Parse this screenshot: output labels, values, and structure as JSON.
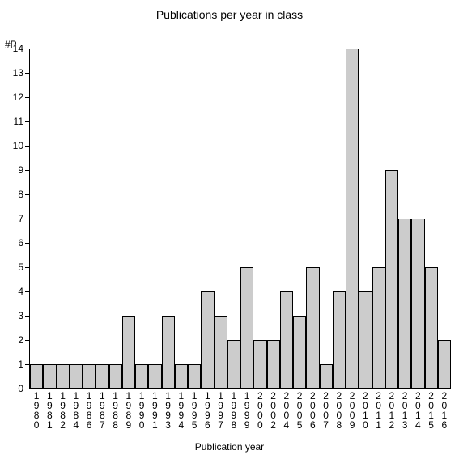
{
  "chart": {
    "type": "bar",
    "title": "Publications per year in class",
    "title_fontsize": 14,
    "y_axis_label": "#P",
    "x_axis_title": "Publication year",
    "label_fontsize": 12,
    "background_color": "#ffffff",
    "bar_fill": "#cccccc",
    "bar_border": "#000000",
    "axis_color": "#000000",
    "ylim": [
      0,
      14
    ],
    "ytick_step": 1,
    "bar_width": 1.0,
    "categories": [
      "1980",
      "1981",
      "1982",
      "1984",
      "1986",
      "1987",
      "1988",
      "1989",
      "1990",
      "1991",
      "1993",
      "1994",
      "1995",
      "1996",
      "1997",
      "1998",
      "1999",
      "2000",
      "2002",
      "2004",
      "2005",
      "2006",
      "2007",
      "2008",
      "2009",
      "2010",
      "2011",
      "2012",
      "2013",
      "2014",
      "2015",
      "2016"
    ],
    "values": [
      1,
      1,
      1,
      1,
      1,
      1,
      1,
      3,
      1,
      1,
      3,
      1,
      1,
      4,
      3,
      2,
      5,
      2,
      2,
      4,
      3,
      5,
      1,
      4,
      14,
      4,
      5,
      9,
      7,
      7,
      5,
      2
    ]
  }
}
